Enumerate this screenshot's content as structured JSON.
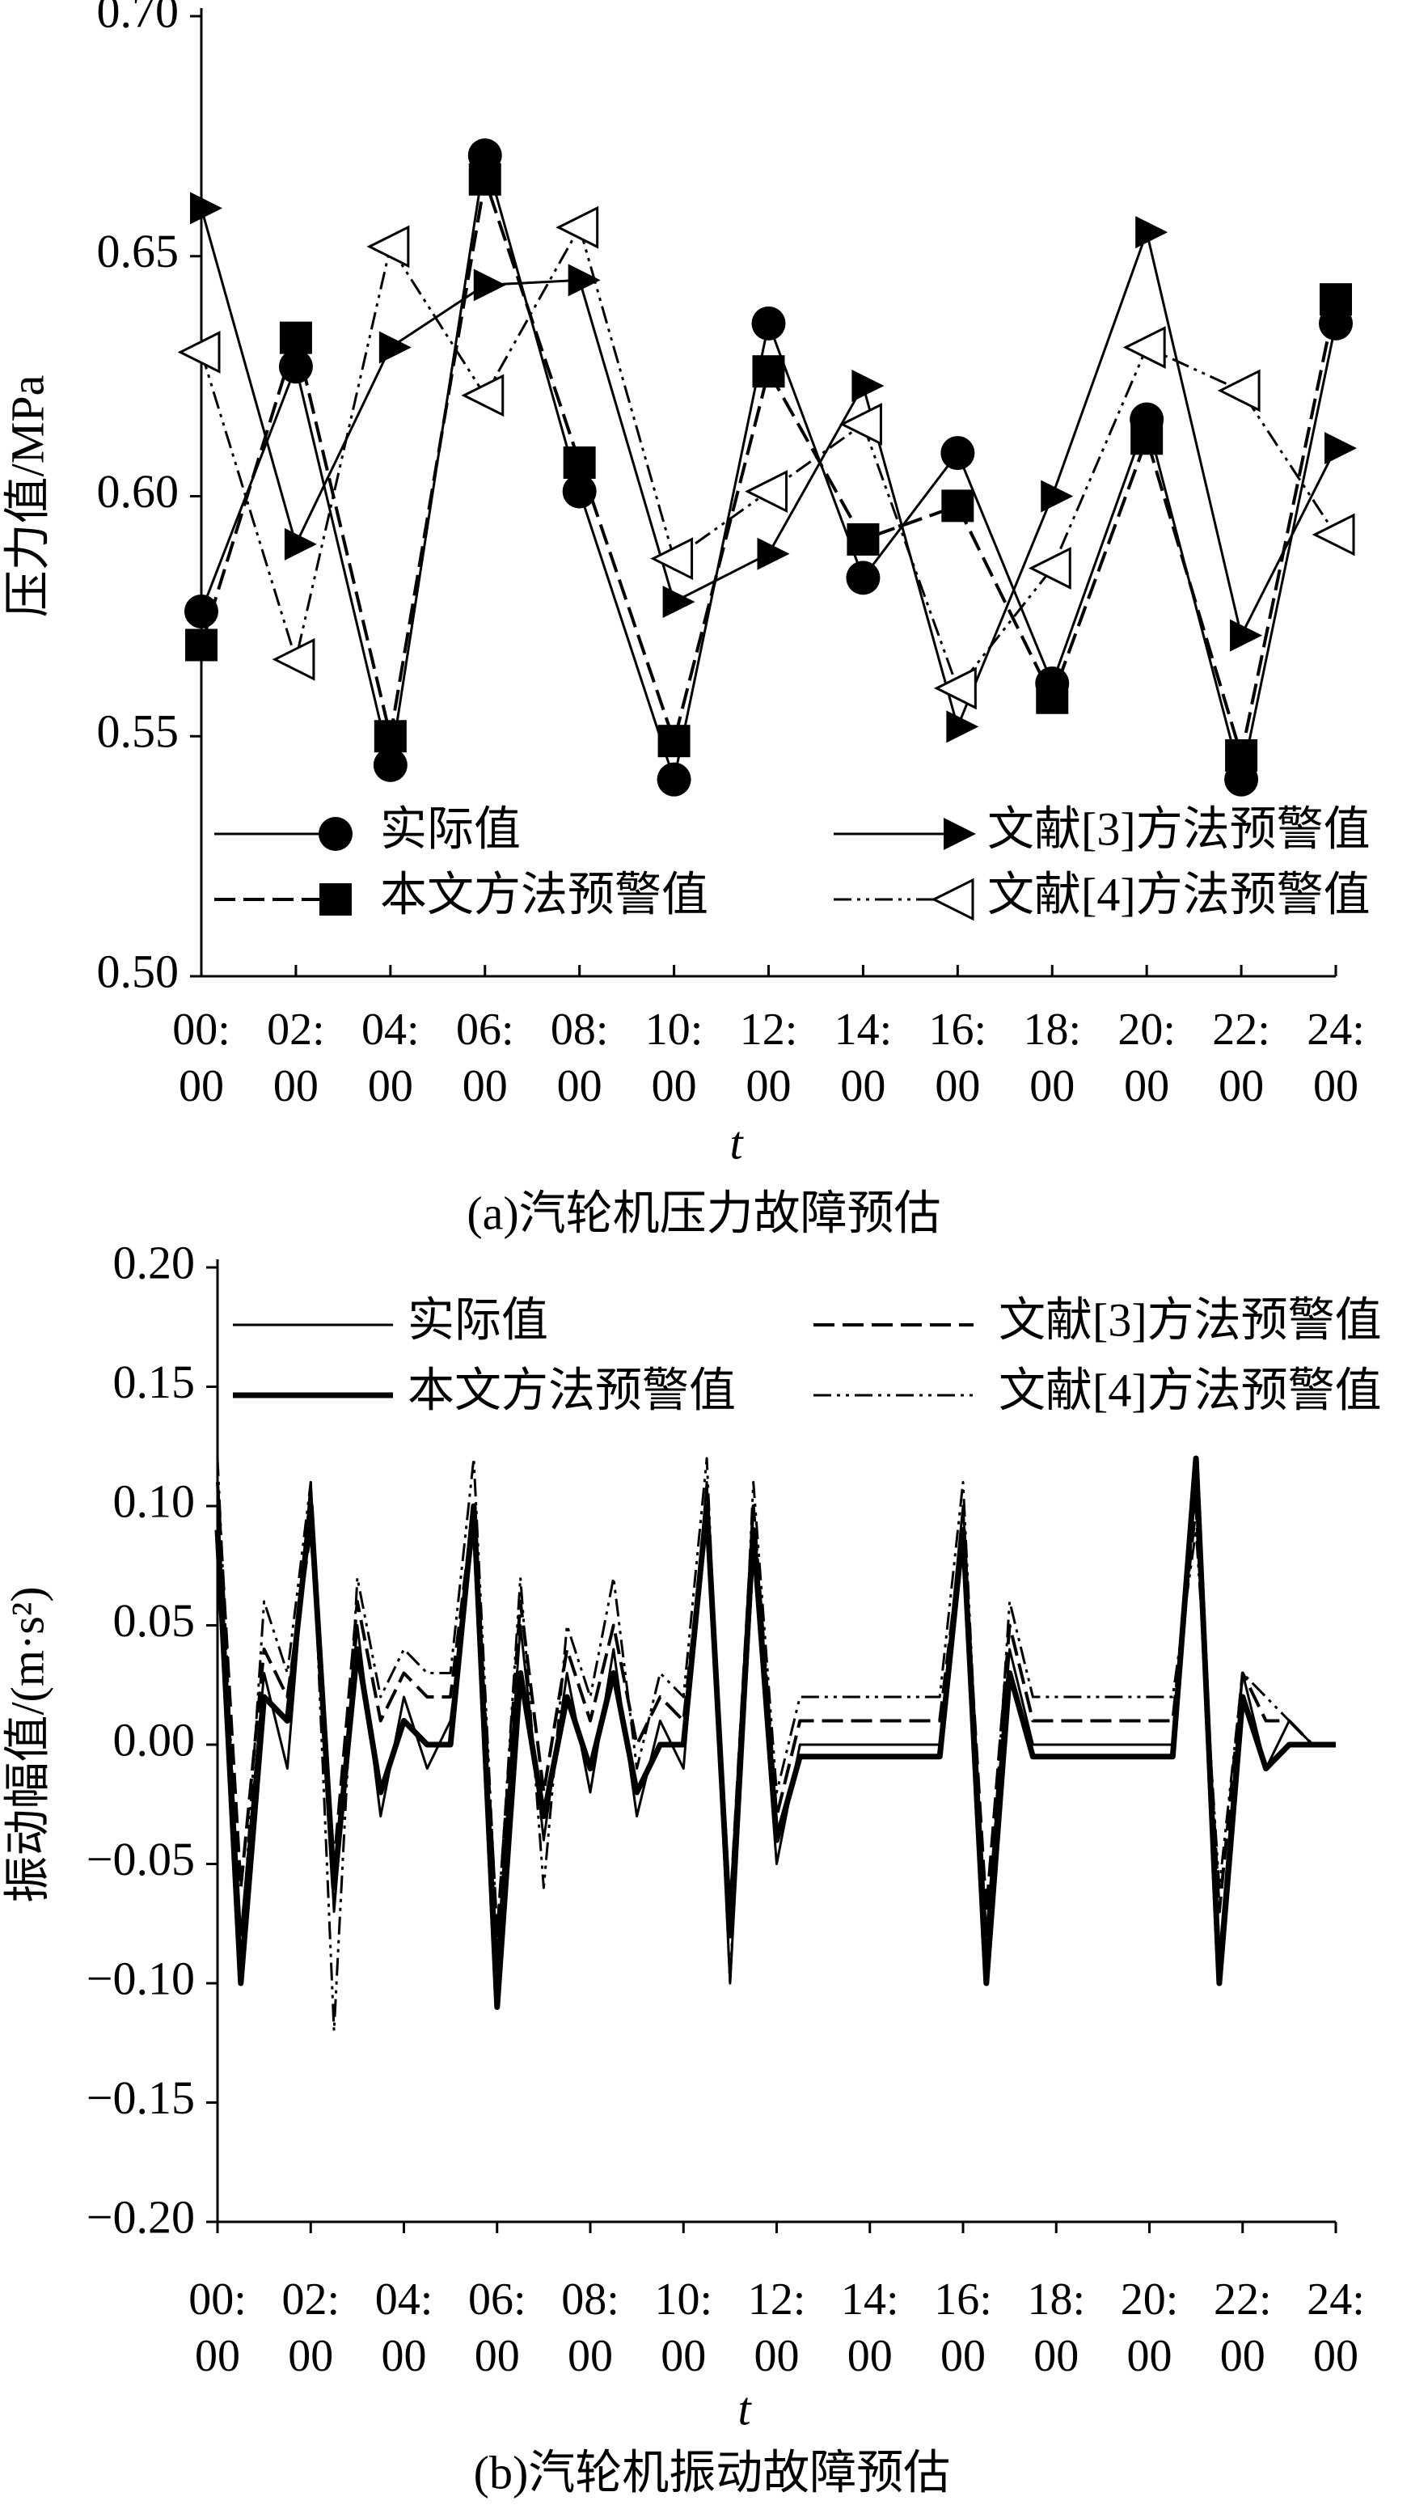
{
  "chart_data": [
    {
      "type": "line",
      "title": "(a)汽轮机压力故障预估",
      "x_label": "t",
      "y_label": "压力值/MPa",
      "categories": [
        "00: 00",
        "02: 00",
        "04: 00",
        "06: 00",
        "08: 00",
        "10: 00",
        "12: 00",
        "14: 00",
        "16: 00",
        "18: 00",
        "20: 00",
        "22: 00",
        "24: 00"
      ],
      "ylim": [
        0.5,
        0.7
      ],
      "yticks": [
        {
          "value": 0.5,
          "label": "0.50"
        },
        {
          "value": 0.55,
          "label": "0.55"
        },
        {
          "value": 0.6,
          "label": "0.60"
        },
        {
          "value": 0.65,
          "label": "0.65"
        },
        {
          "value": 0.7,
          "label": "0.70"
        }
      ],
      "series": [
        {
          "name": "实际值",
          "color": "#000000",
          "line_style": "solid",
          "marker": "circle",
          "values": [
            0.576,
            0.627,
            0.544,
            0.671,
            0.601,
            0.541,
            0.636,
            0.583,
            0.609,
            0.561,
            0.616,
            0.541,
            0.636
          ]
        },
        {
          "name": "本文方法预警值",
          "color": "#000000",
          "line_style": "dashed",
          "marker": "square",
          "values": [
            0.569,
            0.633,
            0.55,
            0.666,
            0.607,
            0.549,
            0.626,
            0.591,
            0.598,
            0.558,
            0.612,
            0.546,
            0.641
          ]
        },
        {
          "name": "文献[3]方法预警值",
          "color": "#000000",
          "line_style": "solid",
          "marker": "arrow",
          "values": [
            0.66,
            0.59,
            0.631,
            0.644,
            0.645,
            0.578,
            0.588,
            0.623,
            0.552,
            0.6,
            0.655,
            0.571,
            0.61
          ]
        },
        {
          "name": "文献[4]方法预警值",
          "color": "#000000",
          "line_style": "dash-dot-dot",
          "marker": "open-triangle",
          "values": [
            0.63,
            0.566,
            0.652,
            0.621,
            0.656,
            0.587,
            0.601,
            0.615,
            0.56,
            0.585,
            0.631,
            0.622,
            0.592
          ]
        }
      ]
    },
    {
      "type": "line",
      "title": "(b)汽轮机振动故障预估",
      "x_label": "t",
      "y_label": "振动幅值/(m·s²)",
      "x": [
        0,
        0.5,
        1,
        1.5,
        2,
        2.5,
        3,
        3.5,
        4,
        4.5,
        5,
        5.5,
        6,
        6.5,
        7,
        7.5,
        8,
        8.5,
        9,
        9.5,
        10,
        10.5,
        11,
        11.5,
        12,
        12.5,
        13,
        13.5,
        14,
        14.5,
        15,
        15.5,
        16,
        16.5,
        17,
        17.5,
        18,
        18.5,
        19,
        19.5,
        20,
        20.5,
        21,
        21.5,
        22,
        22.5,
        23,
        23.5,
        24
      ],
      "xlim": [
        0,
        24
      ],
      "xticks": [
        {
          "value": 0,
          "label": "00: 00"
        },
        {
          "value": 2,
          "label": "02: 00"
        },
        {
          "value": 4,
          "label": "04: 00"
        },
        {
          "value": 6,
          "label": "06: 00"
        },
        {
          "value": 8,
          "label": "08: 00"
        },
        {
          "value": 10,
          "label": "10: 00"
        },
        {
          "value": 12,
          "label": "12: 00"
        },
        {
          "value": 14,
          "label": "14: 00"
        },
        {
          "value": 16,
          "label": "16: 00"
        },
        {
          "value": 18,
          "label": "18: 00"
        },
        {
          "value": 20,
          "label": "20: 00"
        },
        {
          "value": 22,
          "label": "22: 00"
        },
        {
          "value": 24,
          "label": "24: 00"
        }
      ],
      "ylim": [
        -0.2,
        0.2
      ],
      "yticks": [
        {
          "value": -0.2,
          "label": "−0.20"
        },
        {
          "value": -0.15,
          "label": "−0.15"
        },
        {
          "value": -0.1,
          "label": "−0.10"
        },
        {
          "value": -0.05,
          "label": "−0.05"
        },
        {
          "value": 0,
          "label": "0.00"
        },
        {
          "value": 0.05,
          "label": "0.05"
        },
        {
          "value": 0.1,
          "label": "0.10"
        },
        {
          "value": 0.15,
          "label": "0.15"
        },
        {
          "value": 0.2,
          "label": "0.20"
        }
      ],
      "series": [
        {
          "name": "实际值",
          "color": "#000000",
          "line_style": "solid",
          "values": [
            0.1,
            -0.08,
            0.03,
            -0.01,
            0.11,
            -0.07,
            0.05,
            -0.03,
            0.02,
            -0.01,
            0.01,
            0.09,
            -0.09,
            0.05,
            -0.04,
            0.03,
            -0.02,
            0.04,
            -0.03,
            0.01,
            -0.01,
            0.11,
            -0.1,
            0.08,
            -0.05,
            0,
            0,
            0,
            0,
            0,
            0,
            0,
            0.1,
            -0.08,
            0.04,
            0,
            0,
            0,
            0,
            0,
            0,
            0,
            0.11,
            -0.09,
            0.03,
            -0.01,
            0.01,
            0,
            0
          ]
        },
        {
          "name": "本文方法预警值",
          "color": "#000000",
          "line_style": "thick",
          "values": [
            0.09,
            -0.1,
            0.02,
            0.01,
            0.1,
            -0.06,
            0.04,
            -0.02,
            0.01,
            0,
            0,
            0.1,
            -0.11,
            0.03,
            -0.03,
            0.02,
            -0.01,
            0.03,
            -0.02,
            0,
            0,
            0.1,
            -0.08,
            0.09,
            -0.04,
            -0.005,
            -0.005,
            -0.005,
            -0.005,
            -0.005,
            -0.005,
            -0.005,
            0.09,
            -0.1,
            0.03,
            -0.005,
            -0.005,
            -0.005,
            -0.005,
            -0.005,
            -0.005,
            -0.005,
            0.12,
            -0.1,
            0.02,
            -0.01,
            0,
            0,
            0
          ]
        },
        {
          "name": "文献[3]方法预警值",
          "color": "#000000",
          "line_style": "dashed",
          "values": [
            0.11,
            -0.06,
            0.04,
            0.02,
            0.09,
            -0.05,
            0.06,
            0.01,
            0.03,
            0.02,
            0.02,
            0.1,
            -0.08,
            0.06,
            -0.02,
            0.04,
            0.01,
            0.05,
            0,
            0.02,
            0.01,
            0.1,
            -0.07,
            0.1,
            -0.03,
            0.01,
            0.01,
            0.01,
            0.01,
            0.01,
            0.01,
            0.01,
            0.09,
            -0.07,
            0.05,
            0.01,
            0.01,
            0.01,
            0.01,
            0.01,
            0.01,
            0.01,
            0.1,
            -0.07,
            0.03,
            0.01,
            0.01,
            0,
            0
          ]
        },
        {
          "name": "文献[4]方法预警值",
          "color": "#000000",
          "line_style": "dash-dot-dot",
          "values": [
            0.12,
            -0.09,
            0.06,
            0.03,
            0.11,
            -0.12,
            0.07,
            0.02,
            0.04,
            0.03,
            0.03,
            0.12,
            -0.08,
            0.07,
            -0.06,
            0.05,
            0.02,
            0.07,
            -0.01,
            0.03,
            0.02,
            0.12,
            -0.1,
            0.11,
            -0.02,
            0.02,
            0.02,
            0.02,
            0.02,
            0.02,
            0.02,
            0.02,
            0.11,
            -0.09,
            0.06,
            0.02,
            0.02,
            0.02,
            0.02,
            0.02,
            0.02,
            0.02,
            0.09,
            -0.06,
            0.03,
            0.02,
            0.01,
            0,
            0
          ]
        }
      ]
    }
  ]
}
